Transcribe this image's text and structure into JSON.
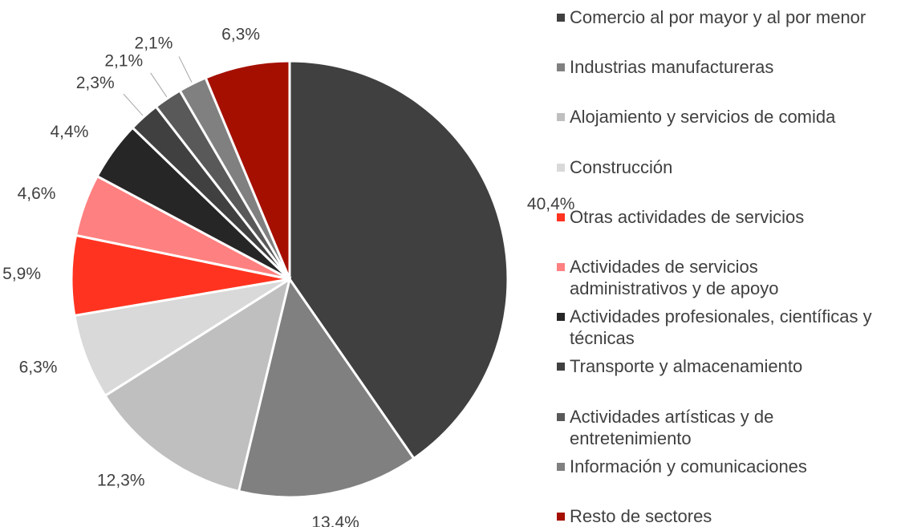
{
  "chart_data": {
    "type": "pie",
    "categories": [
      "Comercio al por mayor y al por menor",
      "Industrias manufactureras",
      "Alojamiento y servicios de comida",
      "Construcción",
      "Otras actividades de servicios",
      "Actividades de servicios administrativos y de apoyo",
      "Actividades profesionales, científicas y técnicas",
      "Transporte y almacenamiento",
      "Actividades artísticas y de entretenimiento",
      "Información y comunicaciones",
      "Resto de sectores"
    ],
    "values": [
      40.4,
      13.4,
      12.3,
      6.3,
      5.9,
      4.6,
      4.4,
      2.3,
      2.1,
      2.1,
      6.3
    ],
    "value_labels": [
      "40,4%",
      "13,4%",
      "12,3%",
      "6,3%",
      "5,9%",
      "4,6%",
      "4,4%",
      "2,3%",
      "2,1%",
      "2,1%",
      "6,3%"
    ],
    "colors": [
      "#404040",
      "#808080",
      "#bfbfbf",
      "#d9d9d9",
      "#ff3320",
      "#ff8080",
      "#262626",
      "#404040",
      "#595959",
      "#808080",
      "#a50f00"
    ],
    "legend": "right"
  }
}
